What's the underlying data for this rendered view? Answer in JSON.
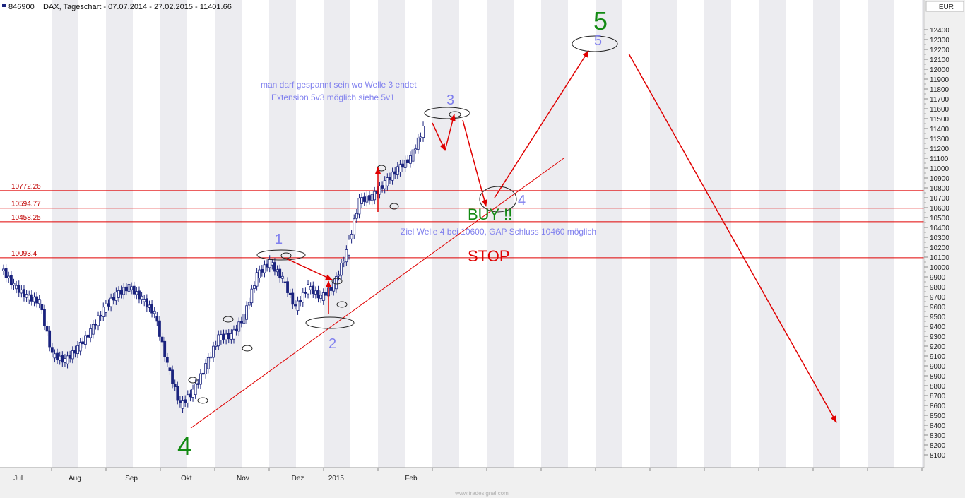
{
  "header": {
    "symbol_id": "846900",
    "title": "DAX, Tageschart - 07.07.2014 - 27.02.2015 - 11401.66"
  },
  "watermark": "www.tradesignal.com",
  "colors": {
    "candle": "#1a237e",
    "level_line": "#e00000",
    "wave_blue": "#8080ee",
    "wave_green": "#138a13",
    "stripe": "#ececf0",
    "axis_bg": "#f0f0f0"
  },
  "chart_data": {
    "type": "candlestick",
    "title": "DAX, Tageschart - 07.07.2014 - 27.02.2015 - 11401.66",
    "currency": "EUR",
    "ylim": [
      8050,
      12600
    ],
    "y_ticks": [
      8100,
      8200,
      8300,
      8400,
      8500,
      8600,
      8700,
      8800,
      8900,
      9000,
      9100,
      9200,
      9300,
      9400,
      9500,
      9600,
      9700,
      9800,
      9900,
      10000,
      10100,
      10200,
      10300,
      10400,
      10500,
      10600,
      10700,
      10800,
      10900,
      11000,
      11100,
      11200,
      11300,
      11400,
      11500,
      11600,
      11700,
      11800,
      11900,
      12000,
      12100,
      12200,
      12300,
      12400
    ],
    "x_labels": [
      {
        "label": "Jul",
        "date": "2014-07-15"
      },
      {
        "label": "Aug",
        "date": "2014-08-15"
      },
      {
        "label": "Sep",
        "date": "2014-09-15"
      },
      {
        "label": "Okt",
        "date": "2014-10-15"
      },
      {
        "label": "Nov",
        "date": "2014-11-15"
      },
      {
        "label": "Dez",
        "date": "2014-12-15"
      },
      {
        "label": "2015",
        "date": "2015-01-05"
      },
      {
        "label": "Feb",
        "date": "2015-02-15"
      }
    ],
    "levels": [
      {
        "label": "10772.26",
        "value": 10772.26
      },
      {
        "label": "10594.77",
        "value": 10594.77
      },
      {
        "label": "10458.25",
        "value": 10458.25
      },
      {
        "label": "10093.4",
        "value": 10093.4
      }
    ],
    "closes": [
      {
        "date": "2014-07-07",
        "close": 9990
      },
      {
        "date": "2014-07-14",
        "close": 9810
      },
      {
        "date": "2014-07-21",
        "close": 9700
      },
      {
        "date": "2014-07-28",
        "close": 9650
      },
      {
        "date": "2014-08-04",
        "close": 9110
      },
      {
        "date": "2014-08-11",
        "close": 9050
      },
      {
        "date": "2014-08-18",
        "close": 9180
      },
      {
        "date": "2014-08-25",
        "close": 9350
      },
      {
        "date": "2014-09-01",
        "close": 9570
      },
      {
        "date": "2014-09-08",
        "close": 9720
      },
      {
        "date": "2014-09-15",
        "close": 9800
      },
      {
        "date": "2014-09-22",
        "close": 9680
      },
      {
        "date": "2014-09-29",
        "close": 9530
      },
      {
        "date": "2014-10-06",
        "close": 9010
      },
      {
        "date": "2014-10-13",
        "close": 8600
      },
      {
        "date": "2014-10-20",
        "close": 8740
      },
      {
        "date": "2014-10-27",
        "close": 9000
      },
      {
        "date": "2014-11-03",
        "close": 9290
      },
      {
        "date": "2014-11-10",
        "close": 9300
      },
      {
        "date": "2014-11-17",
        "close": 9500
      },
      {
        "date": "2014-11-24",
        "close": 9920
      },
      {
        "date": "2014-12-01",
        "close": 10050
      },
      {
        "date": "2014-12-08",
        "close": 9880
      },
      {
        "date": "2014-12-15",
        "close": 9590
      },
      {
        "date": "2014-12-22",
        "close": 9800
      },
      {
        "date": "2014-12-29",
        "close": 9690
      },
      {
        "date": "2015-01-05",
        "close": 9810
      },
      {
        "date": "2015-01-12",
        "close": 10150
      },
      {
        "date": "2015-01-19",
        "close": 10670
      },
      {
        "date": "2015-01-26",
        "close": 10710
      },
      {
        "date": "2015-02-02",
        "close": 10850
      },
      {
        "date": "2015-02-09",
        "close": 10990
      },
      {
        "date": "2015-02-16",
        "close": 11100
      },
      {
        "date": "2015-02-23",
        "close": 11400
      }
    ]
  },
  "annotations": {
    "note_line1": "man darf gespannt sein wo Welle 3 endet",
    "note_line2": "Extension 5v3 möglich siehe 5v1",
    "target_note": "Ziel Welle 4 bei 10600, GAP Schluss 10460 möglich",
    "buy": "BUY !!",
    "stop": "STOP",
    "wave_1": "1",
    "wave_2": "2",
    "wave_3": "3",
    "wave_4_blue": "4",
    "wave_5_blue": "5",
    "wave_4_green": "4",
    "wave_5_green": "5"
  }
}
